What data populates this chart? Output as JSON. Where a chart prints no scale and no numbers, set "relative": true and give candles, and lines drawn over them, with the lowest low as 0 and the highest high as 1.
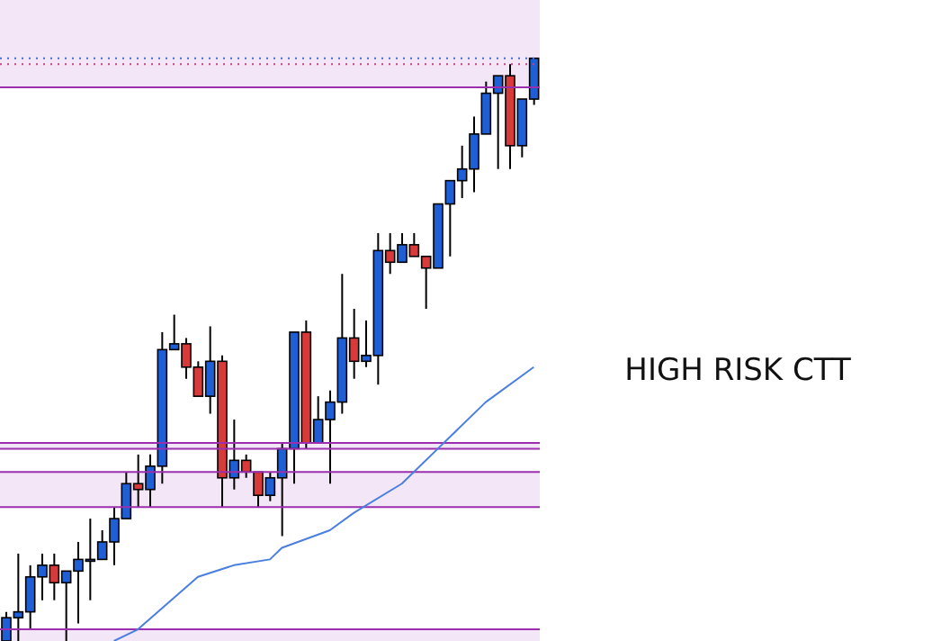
{
  "chart_data": {
    "type": "candlestick",
    "relative": true,
    "categories": [
      null,
      null,
      null,
      null,
      null,
      null,
      null,
      null,
      null,
      null,
      null,
      null,
      null,
      null,
      null,
      null,
      null,
      null,
      null,
      null,
      null,
      null,
      null,
      null,
      null,
      null,
      null,
      null,
      null,
      null,
      null,
      null,
      null,
      null,
      null,
      null,
      null,
      null,
      null,
      null,
      null,
      null,
      null,
      null,
      null
    ],
    "ohlc": [
      [
        0,
        0.05,
        0,
        0.04
      ],
      [
        0.04,
        0.15,
        0,
        0.05
      ],
      [
        0.05,
        0.13,
        0.02,
        0.11
      ],
      [
        0.11,
        0.15,
        0.07,
        0.13
      ],
      [
        0.13,
        0.15,
        0.07,
        0.1
      ],
      [
        0.1,
        0.12,
        0,
        0.12
      ],
      [
        0.12,
        0.17,
        0.03,
        0.14
      ],
      [
        0.14,
        0.21,
        0.07,
        0.14
      ],
      [
        0.14,
        0.19,
        0.14,
        0.17
      ],
      [
        0.17,
        0.23,
        0.13,
        0.21
      ],
      [
        0.21,
        0.29,
        0.21,
        0.27
      ],
      [
        0.27,
        0.32,
        0.23,
        0.26
      ],
      [
        0.26,
        0.32,
        0.23,
        0.3
      ],
      [
        0.3,
        0.53,
        0.27,
        0.5
      ],
      [
        0.5,
        0.56,
        0.5,
        0.51
      ],
      [
        0.51,
        0.52,
        0.45,
        0.47
      ],
      [
        0.47,
        0.48,
        0.42,
        0.42
      ],
      [
        0.42,
        0.54,
        0.39,
        0.48
      ],
      [
        0.48,
        0.49,
        0.23,
        0.28
      ],
      [
        0.28,
        0.38,
        0.26,
        0.31
      ],
      [
        0.31,
        0.32,
        0.28,
        0.29
      ],
      [
        0.29,
        0.29,
        0.23,
        0.25
      ],
      [
        0.25,
        0.29,
        0.24,
        0.28
      ],
      [
        0.28,
        0.34,
        0.18,
        0.33
      ],
      [
        0.33,
        0.53,
        0.27,
        0.53
      ],
      [
        0.53,
        0.55,
        0.33,
        0.34
      ],
      [
        0.34,
        0.42,
        0.34,
        0.38
      ],
      [
        0.38,
        0.43,
        0.27,
        0.41
      ],
      [
        0.41,
        0.63,
        0.39,
        0.52
      ],
      [
        0.52,
        0.57,
        0.45,
        0.48
      ],
      [
        0.48,
        0.55,
        0.47,
        0.49
      ],
      [
        0.49,
        0.7,
        0.44,
        0.67
      ],
      [
        0.67,
        0.7,
        0.63,
        0.65
      ],
      [
        0.65,
        0.7,
        0.65,
        0.68
      ],
      [
        0.68,
        0.7,
        0.66,
        0.66
      ],
      [
        0.66,
        0.66,
        0.57,
        0.64
      ],
      [
        0.64,
        0.75,
        0.64,
        0.75
      ],
      [
        0.75,
        0.79,
        0.66,
        0.79
      ],
      [
        0.79,
        0.85,
        0.76,
        0.81
      ],
      [
        0.81,
        0.9,
        0.77,
        0.87
      ],
      [
        0.87,
        0.96,
        0.87,
        0.94
      ],
      [
        0.94,
        0.97,
        0.81,
        0.97
      ],
      [
        0.97,
        0.99,
        0.81,
        0.85
      ],
      [
        0.85,
        0.93,
        0.83,
        0.93
      ],
      [
        0.93,
        1,
        0.92,
        1
      ]
    ],
    "series": [
      {
        "type": "line",
        "color": "#4a7fe0",
        "values": [
          null,
          null,
          null,
          null,
          null,
          null,
          null,
          null,
          null,
          0,
          null,
          0.02,
          null,
          null,
          null,
          null,
          0.11,
          null,
          null,
          0.13,
          null,
          null,
          0.14,
          0.16,
          null,
          null,
          null,
          0.19,
          null,
          0.22,
          null,
          null,
          null,
          0.27,
          null,
          null,
          0.33,
          null,
          null,
          null,
          0.41,
          null,
          null,
          null,
          0.47
        ]
      }
    ],
    "bands": [
      {
        "axis": "y",
        "from": 0.95,
        "to": 1.1,
        "color": "#f3e6f7"
      },
      {
        "axis": "y",
        "from": 0.23,
        "to": 0.29,
        "color": "#f3e6f7"
      },
      {
        "axis": "y",
        "from": 0.33,
        "to": 0.34,
        "color": "#f3e6f7"
      },
      {
        "axis": "y",
        "from": 0,
        "to": 0.02,
        "color": "#f3e6f7"
      }
    ],
    "ref_lines": [
      {
        "axis": "y",
        "value": 0.95,
        "color": "#9b2fae",
        "line_style": "solid"
      },
      {
        "axis": "y",
        "value": 1,
        "color": "#3b6fd6",
        "line_style": "dotted"
      },
      {
        "axis": "y",
        "value": 0.99,
        "color": "#d04080",
        "line_style": "dotted"
      },
      {
        "axis": "y",
        "value": 0.29,
        "color": "#9b2fae",
        "line_style": "solid"
      },
      {
        "axis": "y",
        "value": 0.23,
        "color": "#9b2fae",
        "line_style": "solid"
      },
      {
        "axis": "y",
        "value": 0.34,
        "color": "#9b2fae",
        "line_style": "solid"
      },
      {
        "axis": "y",
        "value": 0.33,
        "color": "#9b2fae",
        "line_style": "solid"
      },
      {
        "axis": "y",
        "value": 0.02,
        "color": "#9b2fae",
        "line_style": "solid"
      }
    ],
    "annotations": [
      "HIGH RISK CTT"
    ]
  }
}
